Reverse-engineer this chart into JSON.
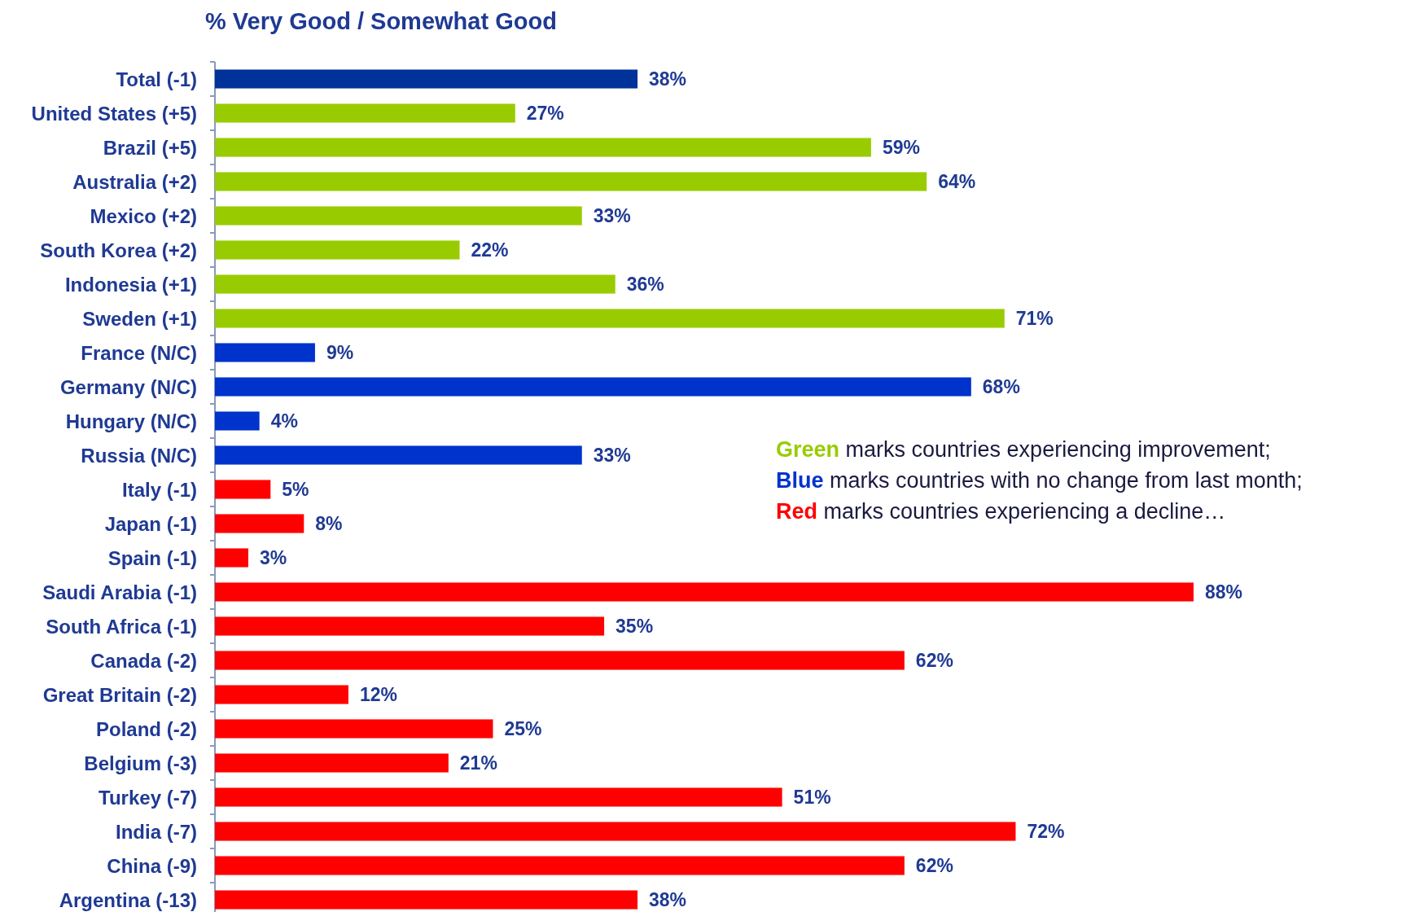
{
  "chart_data": {
    "type": "bar",
    "orientation": "horizontal",
    "title": "% Very Good / Somewhat Good",
    "categories": [
      "Total (-1)",
      "United States (+5)",
      "Brazil (+5)",
      "Australia (+2)",
      "Mexico (+2)",
      "South Korea (+2)",
      "Indonesia (+1)",
      "Sweden (+1)",
      "France (N/C)",
      "Germany (N/C)",
      "Hungary (N/C)",
      "Russia (N/C)",
      "Italy (-1)",
      "Japan (-1)",
      "Spain (-1)",
      "Saudi Arabia (-1)",
      "South Africa (-1)",
      "Canada (-2)",
      "Great Britain (-2)",
      "Poland (-2)",
      "Belgium (-3)",
      "Turkey (-7)",
      "India (-7)",
      "China (-9)",
      "Argentina (-13)"
    ],
    "values": [
      38,
      27,
      59,
      64,
      33,
      22,
      36,
      71,
      9,
      68,
      4,
      33,
      5,
      8,
      3,
      88,
      35,
      62,
      12,
      25,
      21,
      51,
      72,
      62,
      38
    ],
    "colors": [
      "#003399",
      "#99cc00",
      "#99cc00",
      "#99cc00",
      "#99cc00",
      "#99cc00",
      "#99cc00",
      "#99cc00",
      "#0033cc",
      "#0033cc",
      "#0033cc",
      "#0033cc",
      "#ff0000",
      "#ff0000",
      "#ff0000",
      "#ff0000",
      "#ff0000",
      "#ff0000",
      "#ff0000",
      "#ff0000",
      "#ff0000",
      "#ff0000",
      "#ff0000",
      "#ff0000",
      "#ff0000"
    ],
    "value_labels": [
      "38%",
      "27%",
      "59%",
      "64%",
      "33%",
      "22%",
      "36%",
      "71%",
      "9%",
      "68%",
      "4%",
      "33%",
      "5%",
      "8%",
      "3%",
      "88%",
      "35%",
      "62%",
      "12%",
      "25%",
      "21%",
      "51%",
      "72%",
      "62%",
      "38%"
    ],
    "xlim": [
      0,
      88
    ],
    "tick_labels": "y",
    "annotations": [
      "Green marks countries experiencing improvement;",
      "Blue marks countries with no change from last month;",
      "Red marks countries experiencing a decline…"
    ]
  }
}
